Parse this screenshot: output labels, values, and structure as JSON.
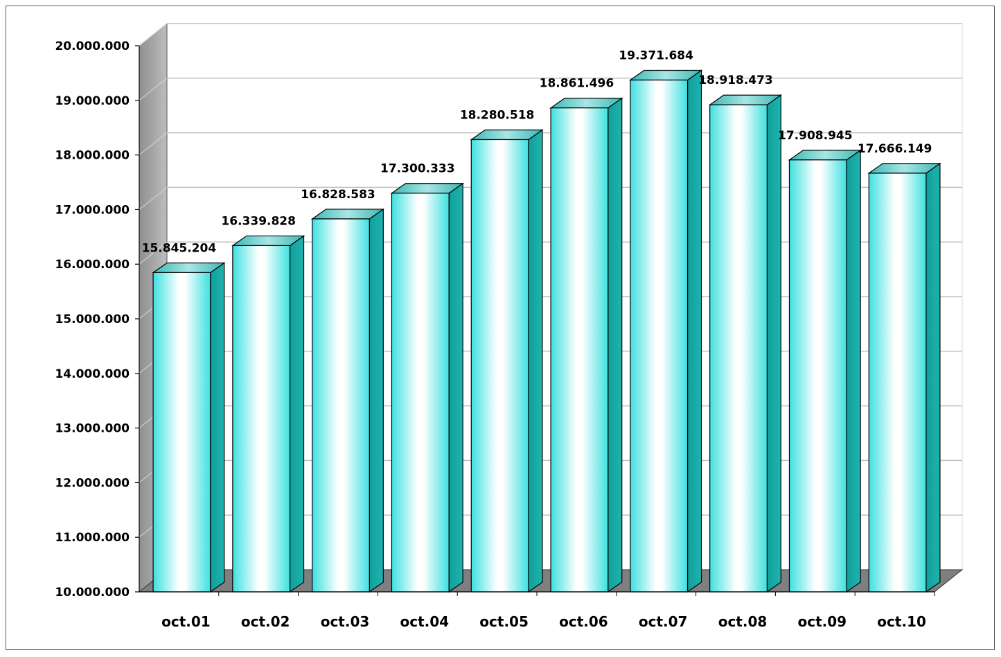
{
  "chart_data": {
    "type": "bar",
    "style": "3d-column",
    "title": "",
    "xlabel": "",
    "ylabel": "",
    "categories": [
      "oct.01",
      "oct.02",
      "oct.03",
      "oct.04",
      "oct.05",
      "oct.06",
      "oct.07",
      "oct.08",
      "oct.09",
      "oct.10"
    ],
    "values": [
      15845204,
      16339828,
      16828583,
      17300333,
      18280518,
      18861496,
      19371684,
      18918473,
      17908945,
      17666149
    ],
    "value_labels": [
      "15.845.204",
      "16.339.828",
      "16.828.583",
      "17.300.333",
      "18.280.518",
      "18.861.496",
      "19.371.684",
      "18.918.473",
      "17.908.945",
      "17.666.149"
    ],
    "ylim": [
      10000000,
      20000000
    ],
    "yticks": [
      10000000,
      11000000,
      12000000,
      13000000,
      14000000,
      15000000,
      16000000,
      17000000,
      18000000,
      19000000,
      20000000
    ],
    "ytick_labels": [
      "10.000.000",
      "11.000.000",
      "12.000.000",
      "13.000.000",
      "14.000.000",
      "15.000.000",
      "16.000.000",
      "17.000.000",
      "18.000.000",
      "19.000.000",
      "20.000.000"
    ],
    "grid": true,
    "legend": "none",
    "colors": {
      "bar_front_edge": "#40e0e0",
      "bar_front_center": "#ffffff",
      "bar_side": "#16a5a2",
      "bar_top": "#58c9c6",
      "wall": "#a6a6a6",
      "floor": "#7f7f7f",
      "grid": "#c0c0c0"
    }
  }
}
